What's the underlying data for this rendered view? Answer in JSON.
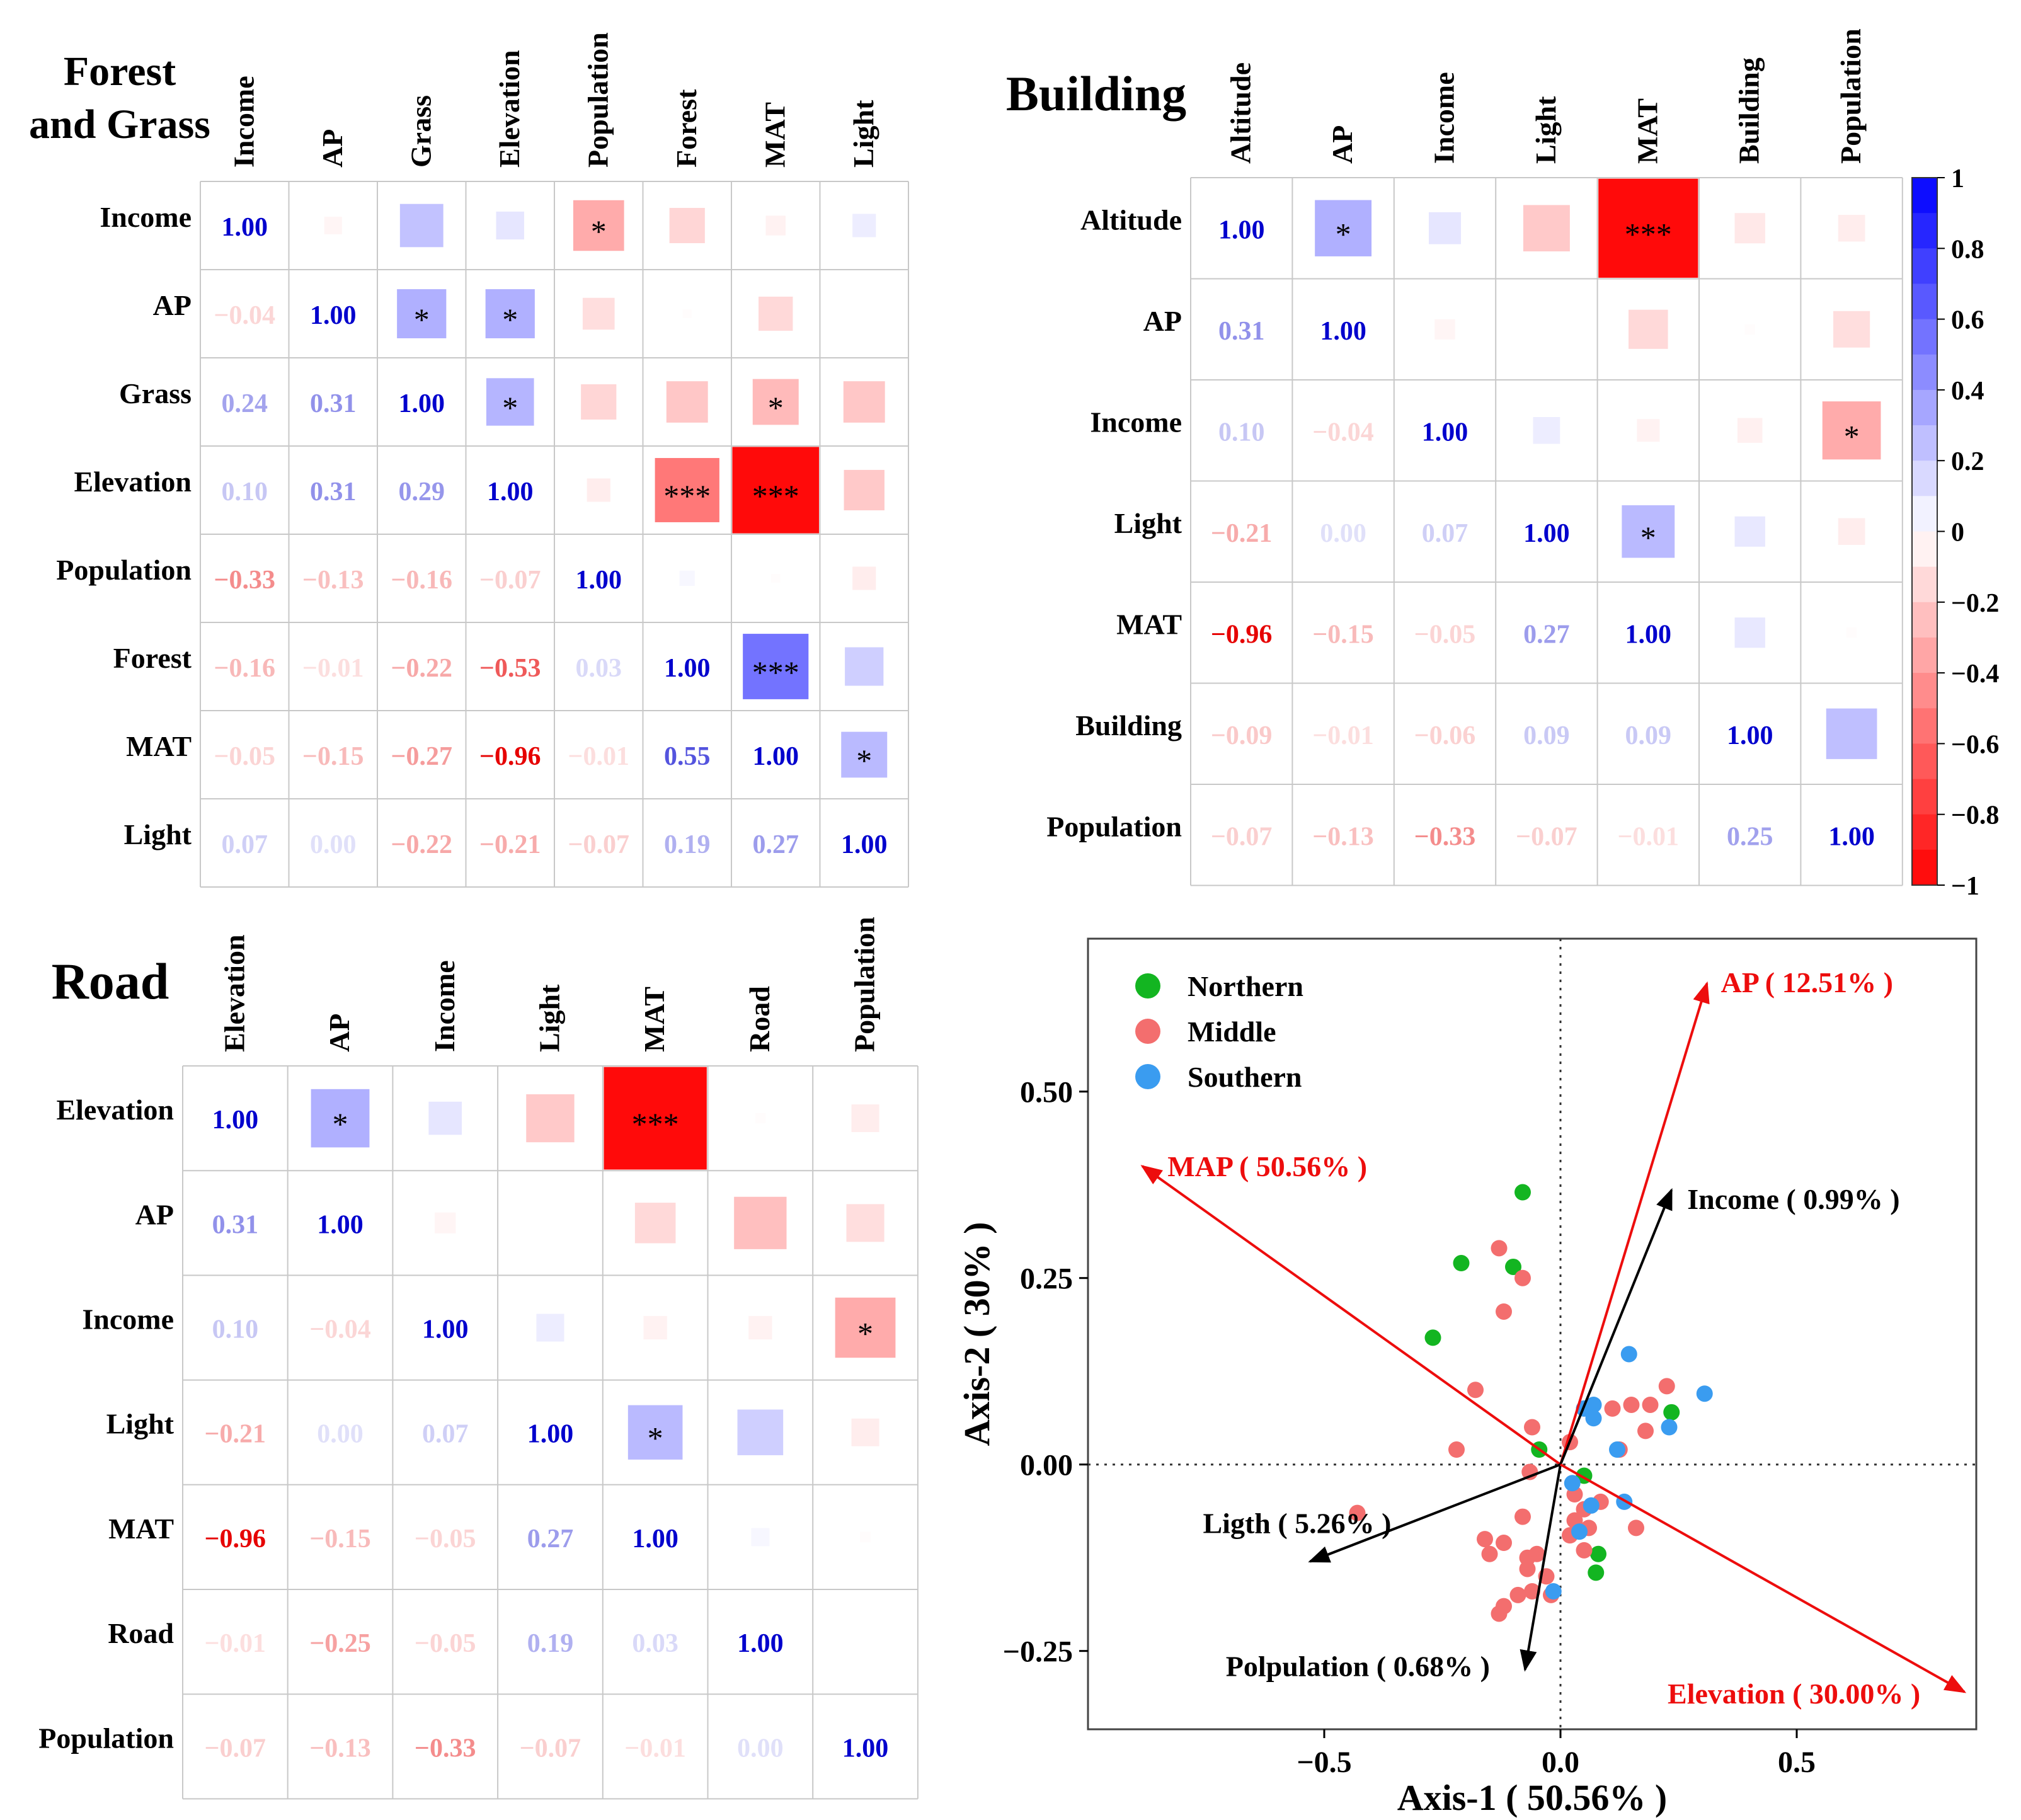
{
  "chart_data": [
    {
      "type": "heatmap",
      "title": "Forest and Grass",
      "title_lines": [
        "Forest",
        "and Grass"
      ],
      "variables": [
        "Income",
        "AP",
        "Grass",
        "Elevation",
        "Population",
        "Forest",
        "MAT",
        "Light"
      ],
      "matrix": [
        [
          1.0,
          -0.04,
          0.24,
          0.1,
          -0.33,
          -0.16,
          -0.05,
          0.07
        ],
        [
          -0.04,
          1.0,
          0.31,
          0.31,
          -0.13,
          -0.01,
          -0.15,
          0.0
        ],
        [
          0.24,
          0.31,
          1.0,
          0.29,
          -0.16,
          -0.22,
          -0.27,
          -0.22
        ],
        [
          0.1,
          0.31,
          0.29,
          1.0,
          -0.07,
          -0.53,
          -0.96,
          -0.21
        ],
        [
          -0.33,
          -0.13,
          -0.16,
          -0.07,
          1.0,
          0.03,
          -0.01,
          -0.07
        ],
        [
          -0.16,
          -0.01,
          -0.22,
          -0.53,
          0.03,
          1.0,
          0.55,
          0.19
        ],
        [
          -0.05,
          -0.15,
          -0.27,
          -0.96,
          -0.01,
          0.55,
          1.0,
          0.27
        ],
        [
          0.07,
          0.0,
          -0.22,
          -0.21,
          -0.07,
          0.19,
          0.27,
          1.0
        ]
      ],
      "labels": [
        [
          "1.00",
          "-0.04",
          "0.24",
          "0.10",
          "-0.33",
          "-0.16",
          "-0.05",
          "0.07"
        ],
        [
          "-0.04",
          "1.00",
          "0.31",
          "0.31",
          "-0.13",
          "-0.01",
          "-0.15",
          "0.00"
        ],
        [
          "0.24",
          "0.31",
          "1.00",
          "0.29",
          "-0.16",
          "-0.22",
          "-0.27",
          "-0.22"
        ],
        [
          "0.10",
          "0.31",
          "0.29",
          "1.00",
          "-0.07",
          "-0.53",
          "-0.96",
          "-0.21"
        ],
        [
          "-0.33",
          "-0.13",
          "-0.16",
          "-0.07",
          "1.00",
          "0.03",
          "-0.01",
          "-0.07"
        ],
        [
          "-0.16",
          "-0.01",
          "-0.22",
          "-0.53",
          "0.03",
          "1.00",
          "0.55",
          "0.19"
        ],
        [
          "-0.05",
          "-0.15",
          "-0.27",
          "-0.96",
          "-0.01",
          "0.55",
          "1.00",
          "0.27"
        ],
        [
          "0.07",
          "0.00",
          "-0.22",
          "-0.21",
          "-0.07",
          "0.19",
          "0.27",
          "1.00"
        ]
      ],
      "significance": [
        [
          "",
          "",
          "",
          "",
          "*",
          "",
          "",
          ""
        ],
        [
          "",
          "",
          "*",
          "*",
          "",
          "",
          "",
          ""
        ],
        [
          "",
          "",
          "",
          "*",
          "",
          "",
          "*",
          ""
        ],
        [
          "",
          "",
          "",
          "",
          "",
          "***",
          "***",
          ""
        ],
        [
          "",
          "",
          "",
          "",
          "",
          "",
          "",
          ""
        ],
        [
          "",
          "",
          "",
          "",
          "",
          "",
          "***",
          ""
        ],
        [
          "",
          "",
          "",
          "",
          "",
          "",
          "",
          "*"
        ],
        [
          "",
          "",
          "",
          "",
          "",
          "",
          "",
          ""
        ]
      ]
    },
    {
      "type": "heatmap",
      "title": "Building",
      "title_lines": [
        "Building"
      ],
      "variables": [
        "Altitude",
        "AP",
        "Income",
        "Light",
        "MAT",
        "Building",
        "Population"
      ],
      "matrix": [
        [
          1.0,
          0.31,
          0.1,
          -0.21,
          -0.96,
          -0.09,
          -0.07
        ],
        [
          0.31,
          1.0,
          -0.04,
          0.0,
          -0.15,
          -0.01,
          -0.13
        ],
        [
          0.1,
          -0.04,
          1.0,
          0.07,
          -0.05,
          -0.06,
          -0.33
        ],
        [
          -0.21,
          0.0,
          0.07,
          1.0,
          0.27,
          0.09,
          -0.07
        ],
        [
          -0.96,
          -0.15,
          -0.05,
          0.27,
          1.0,
          0.09,
          -0.01
        ],
        [
          -0.09,
          -0.01,
          -0.06,
          0.09,
          0.09,
          1.0,
          0.25
        ],
        [
          -0.07,
          -0.13,
          -0.33,
          -0.07,
          -0.01,
          0.25,
          1.0
        ]
      ],
      "labels": [
        [
          "1.00",
          "0.31",
          "0.10",
          "-0.21",
          "-0.96",
          "-0.09",
          "-0.07"
        ],
        [
          "0.31",
          "1.00",
          "-0.04",
          "0.00",
          "-0.15",
          "-0.01",
          "-0.13"
        ],
        [
          "0.10",
          "-0.04",
          "1.00",
          "0.07",
          "-0.05",
          "-0.06",
          "-0.33"
        ],
        [
          "-0.21",
          "0.00",
          "0.07",
          "1.00",
          "0.27",
          "0.09",
          "-0.07"
        ],
        [
          "-0.96",
          "-0.15",
          "-0.05",
          "0.27",
          "1.00",
          "0.09",
          "-0.01"
        ],
        [
          "-0.09",
          "-0.01",
          "-0.06",
          "0.09",
          "0.09",
          "1.00",
          "0.25"
        ],
        [
          "-0.07",
          "-0.13",
          "-0.33",
          "-0.07",
          "-0.01",
          "0.25",
          "1.00"
        ]
      ],
      "significance": [
        [
          "",
          "*",
          "",
          "",
          "***",
          "",
          ""
        ],
        [
          "",
          "",
          "",
          "",
          "",
          "",
          ""
        ],
        [
          "",
          "",
          "",
          "",
          "",
          "",
          "*"
        ],
        [
          "",
          "",
          "",
          "",
          "*",
          "",
          ""
        ],
        [
          "",
          "",
          "",
          "",
          "",
          "",
          ""
        ],
        [
          "",
          "",
          "",
          "",
          "",
          "",
          ""
        ],
        [
          "",
          "",
          "",
          "",
          "",
          "",
          ""
        ]
      ],
      "colorbar": {
        "range": [
          -1,
          1
        ],
        "ticks": [
          "1",
          "0.8",
          "0.6",
          "0.4",
          "0.2",
          "0",
          "−0.2",
          "−0.4",
          "−0.6",
          "−0.8",
          "−1"
        ],
        "tick_values": [
          1,
          0.8,
          0.6,
          0.4,
          0.2,
          0,
          -0.2,
          -0.4,
          -0.6,
          -0.8,
          -1
        ]
      }
    },
    {
      "type": "heatmap",
      "title": "Road",
      "title_lines": [
        "Road"
      ],
      "variables": [
        "Elevation",
        "AP",
        "Income",
        "Light",
        "MAT",
        "Road",
        "Population"
      ],
      "matrix": [
        [
          1.0,
          0.31,
          0.1,
          -0.21,
          -0.96,
          -0.01,
          -0.07
        ],
        [
          0.31,
          1.0,
          -0.04,
          0.0,
          -0.15,
          -0.25,
          -0.13
        ],
        [
          0.1,
          -0.04,
          1.0,
          0.07,
          -0.05,
          -0.05,
          -0.33
        ],
        [
          -0.21,
          0.0,
          0.07,
          1.0,
          0.27,
          0.19,
          -0.07
        ],
        [
          -0.96,
          -0.15,
          -0.05,
          0.27,
          1.0,
          0.03,
          -0.01
        ],
        [
          -0.01,
          -0.25,
          -0.05,
          0.19,
          0.03,
          1.0,
          0.0
        ],
        [
          -0.07,
          -0.13,
          -0.33,
          -0.07,
          -0.01,
          0.0,
          1.0
        ]
      ],
      "labels": [
        [
          "1.00",
          "0.31",
          "0.10",
          "-0.21",
          "-0.96",
          "-0.01",
          "-0.07"
        ],
        [
          "0.31",
          "1.00",
          "-0.04",
          "0.00",
          "-0.15",
          "-0.25",
          "-0.13"
        ],
        [
          "0.10",
          "-0.04",
          "1.00",
          "0.07",
          "-0.05",
          "-0.05",
          "-0.33"
        ],
        [
          "-0.21",
          "0.00",
          "0.07",
          "1.00",
          "0.27",
          "0.19",
          "-0.07"
        ],
        [
          "-0.96",
          "-0.15",
          "-0.05",
          "0.27",
          "1.00",
          "0.03",
          "-0.01"
        ],
        [
          "-0.01",
          "-0.25",
          "-0.05",
          "0.19",
          "0.03",
          "1.00",
          "0.00"
        ],
        [
          "-0.07",
          "-0.13",
          "-0.33",
          "-0.07",
          "-0.01",
          "0.00",
          "1.00"
        ]
      ],
      "significance": [
        [
          "",
          "*",
          "",
          "",
          "***",
          "",
          ""
        ],
        [
          "",
          "",
          "",
          "",
          "",
          "",
          ""
        ],
        [
          "",
          "",
          "",
          "",
          "",
          "",
          "*"
        ],
        [
          "",
          "",
          "",
          "",
          "*",
          "",
          ""
        ],
        [
          "",
          "",
          "",
          "",
          "",
          "",
          ""
        ],
        [
          "",
          "",
          "",
          "",
          "",
          "",
          ""
        ],
        [
          "",
          "",
          "",
          "",
          "",
          "",
          ""
        ]
      ]
    },
    {
      "type": "scatter",
      "title": "",
      "xlabel": "Axis-1 ( 50.56% )",
      "ylabel": "Axis-2 ( 30% )",
      "xlim": [
        -1.0,
        0.88
      ],
      "ylim": [
        -0.355,
        0.705
      ],
      "x_ticks": [
        -0.5,
        0.0,
        0.5
      ],
      "x_tick_labels": [
        "−0.5",
        "0.0",
        "0.5"
      ],
      "y_ticks": [
        0.5,
        0.25,
        0.0,
        -0.25
      ],
      "y_tick_labels": [
        "0.50",
        "0.25",
        "0.00",
        "−0.25"
      ],
      "legend_position": "top-left",
      "series": [
        {
          "name": "Northern",
          "color": "#13b521",
          "points": [
            [
              -0.08,
              0.365
            ],
            [
              -0.21,
              0.27
            ],
            [
              -0.1,
              0.265
            ],
            [
              -0.27,
              0.17
            ],
            [
              -0.045,
              0.02
            ],
            [
              0.05,
              -0.015
            ],
            [
              0.08,
              -0.12
            ],
            [
              0.075,
              -0.145
            ],
            [
              0.235,
              0.07
            ]
          ]
        },
        {
          "name": "Middle",
          "color": "#f36e6e",
          "points": [
            [
              -0.13,
              0.29
            ],
            [
              -0.08,
              0.25
            ],
            [
              -0.12,
              0.205
            ],
            [
              -0.18,
              0.1
            ],
            [
              -0.22,
              0.02
            ],
            [
              -0.06,
              0.05
            ],
            [
              0.02,
              0.03
            ],
            [
              0.11,
              0.075
            ],
            [
              0.15,
              0.08
            ],
            [
              0.19,
              0.08
            ],
            [
              0.225,
              0.105
            ],
            [
              0.125,
              0.02
            ],
            [
              0.18,
              0.045
            ],
            [
              -0.43,
              -0.065
            ],
            [
              -0.065,
              -0.01
            ],
            [
              0.03,
              -0.04
            ],
            [
              0.05,
              -0.06
            ],
            [
              0.03,
              -0.075
            ],
            [
              0.06,
              -0.085
            ],
            [
              0.02,
              -0.095
            ],
            [
              0.085,
              -0.05
            ],
            [
              0.05,
              -0.115
            ],
            [
              -0.08,
              -0.07
            ],
            [
              -0.16,
              -0.1
            ],
            [
              -0.15,
              -0.12
            ],
            [
              -0.07,
              -0.125
            ],
            [
              -0.05,
              -0.12
            ],
            [
              -0.07,
              -0.14
            ],
            [
              -0.03,
              -0.15
            ],
            [
              -0.02,
              -0.175
            ],
            [
              -0.06,
              -0.17
            ],
            [
              -0.09,
              -0.175
            ],
            [
              -0.12,
              -0.19
            ],
            [
              -0.13,
              -0.2
            ],
            [
              -0.12,
              -0.105
            ],
            [
              0.16,
              -0.085
            ]
          ]
        },
        {
          "name": "Southern",
          "color": "#3a9cf0",
          "points": [
            [
              0.145,
              0.148
            ],
            [
              0.305,
              0.095
            ],
            [
              0.05,
              0.075
            ],
            [
              0.07,
              0.08
            ],
            [
              0.07,
              0.062
            ],
            [
              0.23,
              0.05
            ],
            [
              0.065,
              -0.055
            ],
            [
              0.135,
              -0.05
            ],
            [
              0.025,
              -0.025
            ],
            [
              0.04,
              -0.09
            ],
            [
              -0.015,
              -0.17
            ],
            [
              0.12,
              0.02
            ]
          ]
        }
      ],
      "vectors": [
        {
          "label": "AP ( 12.51% )",
          "color": "#ed0d0d",
          "end": [
            0.31,
            0.645
          ]
        },
        {
          "label": "MAP ( 50.56% )",
          "color": "#ed0d0d",
          "end": [
            -0.885,
            0.4
          ]
        },
        {
          "label": "Income ( 0.99% )",
          "color": "#000000",
          "end": [
            0.235,
            0.368
          ]
        },
        {
          "label": "Ligth ( 5.26% )",
          "color": "#000000",
          "end": [
            -0.53,
            -0.13
          ]
        },
        {
          "label": "Polpulation ( 0.68% )",
          "color": "#000000",
          "end": [
            -0.075,
            -0.275
          ]
        },
        {
          "label": "Elevation ( 30.00% )",
          "color": "#ed0d0d",
          "end": [
            0.855,
            -0.305
          ]
        }
      ]
    }
  ]
}
